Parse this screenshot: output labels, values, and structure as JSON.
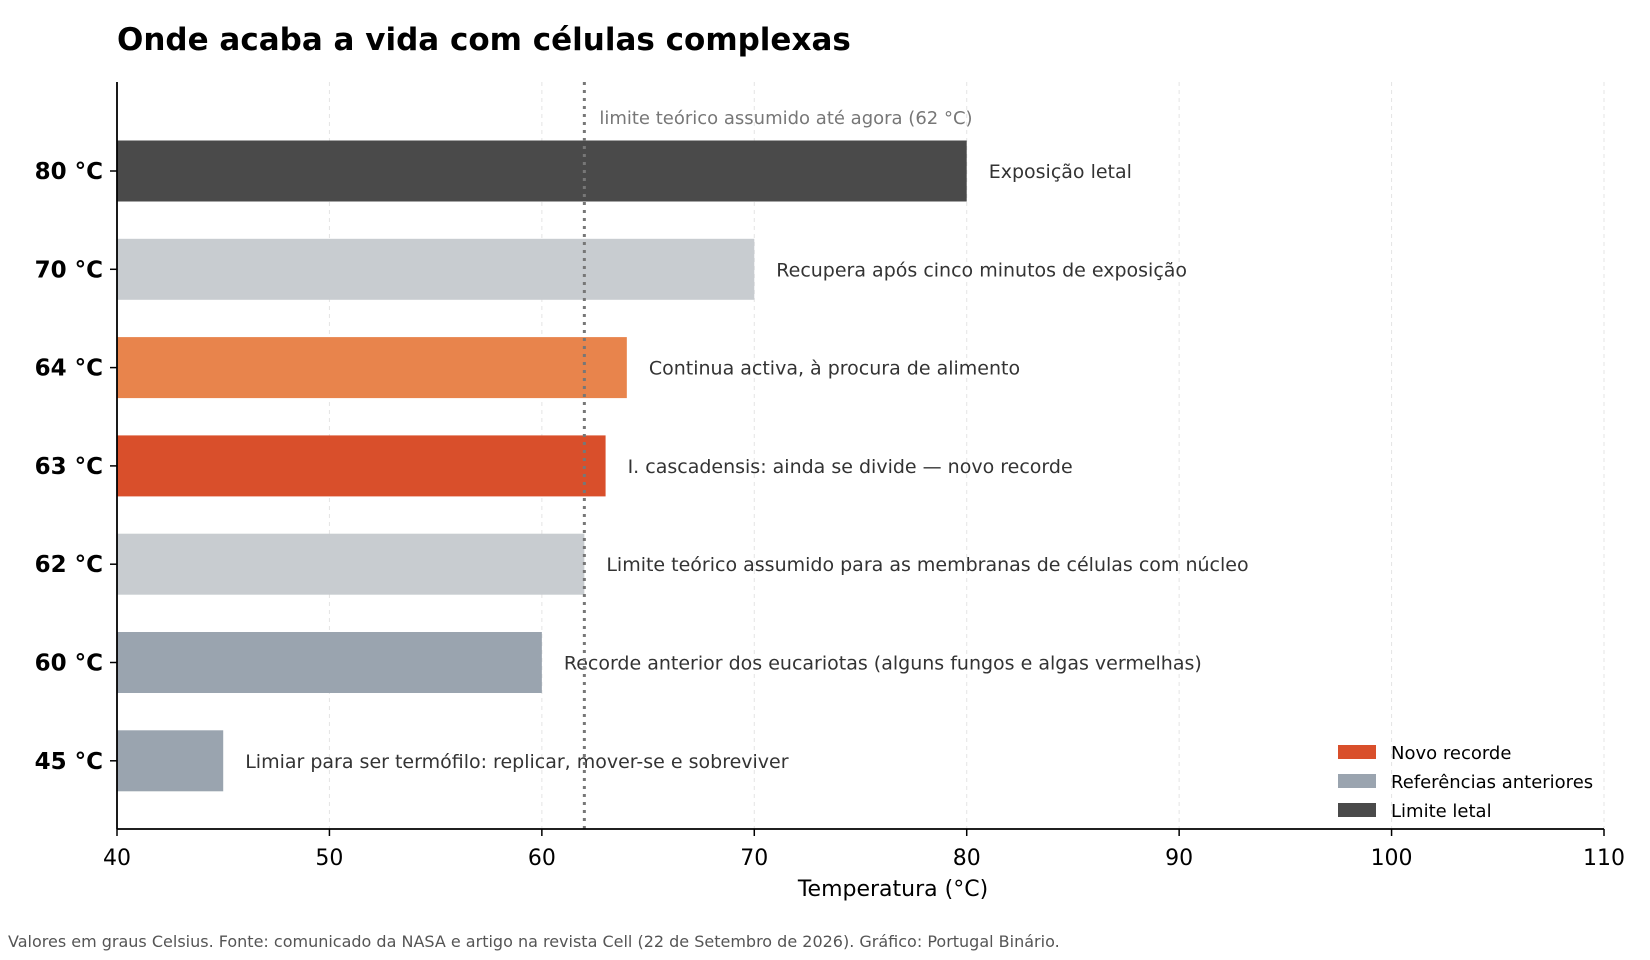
{
  "chart_data": {
    "type": "bar",
    "orientation": "horizontal",
    "title": "Onde acaba a vida com células complexas",
    "xlabel": "Temperatura (°C)",
    "ylabel": "",
    "xlim": [
      40,
      110
    ],
    "xticks": [
      40,
      50,
      60,
      70,
      80,
      90,
      100,
      110
    ],
    "grid": "vertical dashed",
    "categories": [
      "80 °C",
      "70 °C",
      "64 °C",
      "63 °C",
      "62 °C",
      "60 °C",
      "45 °C"
    ],
    "values": [
      80,
      70,
      64,
      63,
      62,
      60,
      45
    ],
    "annotations": [
      "Exposição letal",
      "Recupera após cinco minutos de exposição",
      "Continua activa, à procura de alimento",
      "I. cascadensis: ainda se divide — novo recorde",
      "Limite teórico assumido para as membranas de células com núcleo",
      "Recorde anterior dos eucariotas (alguns fungos e algas vermelhas)",
      "Limiar para ser termófilo: replicar, mover-se e sobreviver"
    ],
    "bar_colors": [
      "#4a4a4a",
      "#c8ccd0",
      "#e8844c",
      "#d94f2b",
      "#c8ccd0",
      "#9aa4af",
      "#9aa4af"
    ],
    "reference_line": {
      "value": 62,
      "style": "dotted",
      "color": "#777777",
      "label": "limite teórico assumido até agora (62 °C)"
    },
    "legend": {
      "placement": "bottom-right",
      "entries": [
        {
          "label": "Novo recorde",
          "color": "#d94f2b"
        },
        {
          "label": "Referências anteriores",
          "color": "#9aa4af"
        },
        {
          "label": "Limite letal",
          "color": "#4a4a4a"
        }
      ]
    }
  },
  "footer": {
    "source": "Valores em graus Celsius. Fonte: comunicado da NASA e artigo na revista Cell (22 de Setembro de 2026). Gráfico: Portugal Binário."
  }
}
